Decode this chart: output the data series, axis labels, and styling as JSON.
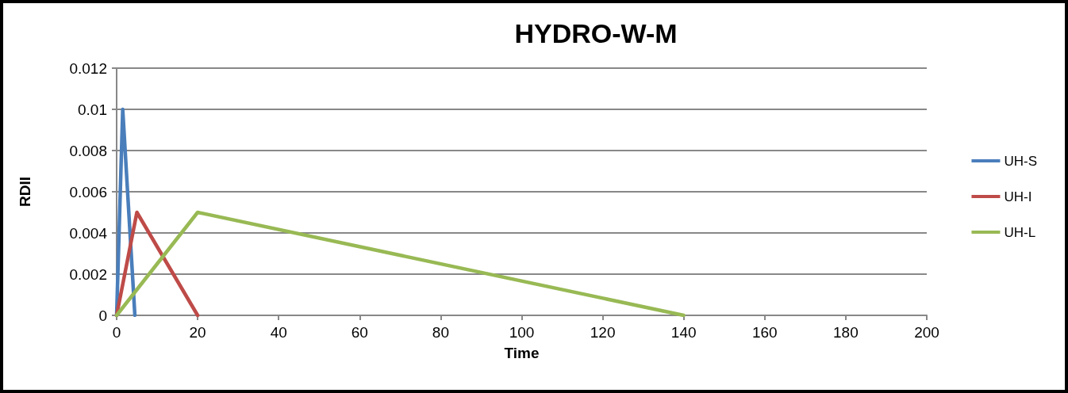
{
  "chart_data": {
    "type": "line",
    "title": "HYDRO-W-M",
    "xlabel": "Time",
    "ylabel": "RDII",
    "series": [
      {
        "name": "UH-S",
        "color": "#4a7ebb",
        "x": [
          0,
          1.5,
          4.5
        ],
        "values": [
          0,
          0.01,
          0
        ]
      },
      {
        "name": "UH-I",
        "color": "#be4b48",
        "x": [
          0,
          5,
          20
        ],
        "values": [
          0,
          0.005,
          0
        ]
      },
      {
        "name": "UH-L",
        "color": "#98b954",
        "x": [
          0,
          20,
          140
        ],
        "values": [
          0,
          0.005,
          0
        ]
      }
    ],
    "xlim": [
      0,
      200
    ],
    "xticks": [
      0,
      20,
      40,
      60,
      80,
      100,
      120,
      140,
      160,
      180,
      200
    ],
    "ylim": [
      0,
      0.012
    ],
    "yticks": [
      0,
      0.002,
      0.004,
      0.006,
      0.008,
      0.01,
      0.012
    ],
    "grid": "y",
    "legend": "right",
    "marker": "none",
    "line_style": "solid"
  }
}
